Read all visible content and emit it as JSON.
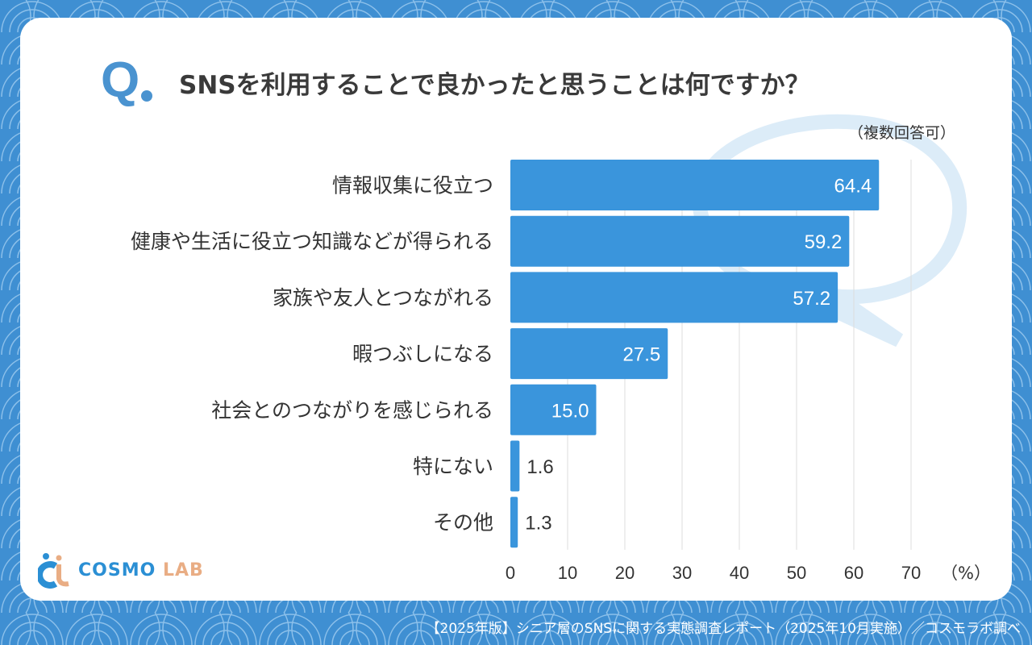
{
  "question_mark": "Q",
  "title": "SNSを利用することで良かったと思うことは何ですか？",
  "note": "（複数回答可）",
  "footer": "【2025年版】シニア層のSNSに関する実態調査レポート（2025年10月実施）／コスモラボ調べ",
  "logo": {
    "main": "COSMO",
    "accent": "LAB"
  },
  "colors": {
    "bar": "#3a95dc",
    "background": "#3f8fd2",
    "grid": "#dddddd"
  },
  "chart_data": {
    "type": "bar",
    "orientation": "horizontal",
    "categories": [
      "情報収集に役立つ",
      "健康や生活に役立つ知識などが得られる",
      "家族や友人とつながれる",
      "暇つぶしになる",
      "社会とのつながりを感じられる",
      "特にない",
      "その他"
    ],
    "values": [
      64.4,
      59.2,
      57.2,
      27.5,
      15.0,
      1.6,
      1.3
    ],
    "value_labels": [
      "64.4",
      "59.2",
      "57.2",
      "27.5",
      "15.0",
      "1.6",
      "1.3"
    ],
    "xlim": [
      0,
      70
    ],
    "xticks": [
      "0",
      "10",
      "20",
      "30",
      "40",
      "50",
      "60",
      "70"
    ],
    "unit_label": "（%）",
    "grid": true
  }
}
